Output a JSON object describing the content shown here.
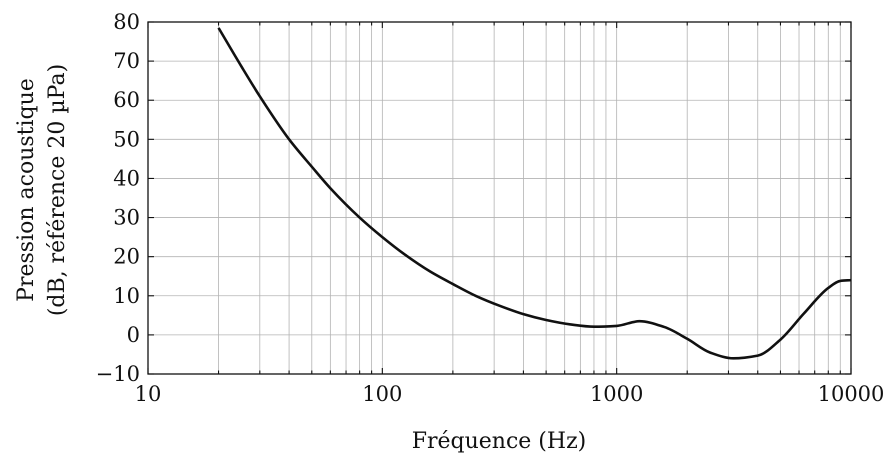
{
  "chart_data": {
    "type": "line",
    "title": "",
    "xlabel": "Fréquence (Hz)",
    "ylabel_lines": [
      "Pression acoustique",
      "(dB, référence 20 µPa)"
    ],
    "x_scale": "log",
    "xlim": [
      10,
      10000
    ],
    "ylim": [
      -10,
      80
    ],
    "x_ticks": [
      10,
      100,
      1000,
      10000
    ],
    "x_tick_labels": [
      "10",
      "100",
      "1000",
      "10000"
    ],
    "y_ticks": [
      -10,
      0,
      10,
      20,
      30,
      40,
      50,
      60,
      70,
      80
    ],
    "y_tick_labels": [
      "−10",
      "0",
      "10",
      "20",
      "30",
      "40",
      "50",
      "60",
      "70",
      "80"
    ],
    "grid": true,
    "series": [
      {
        "color": "#111111",
        "x": [
          20,
          25,
          30,
          40,
          50,
          60,
          80,
          100,
          125,
          160,
          200,
          250,
          315,
          400,
          500,
          630,
          800,
          1000,
          1250,
          1600,
          2000,
          2500,
          3150,
          4000,
          5000,
          6300,
          8000,
          9000,
          10000
        ],
        "y": [
          78.5,
          68.7,
          61.0,
          50.0,
          43.0,
          37.5,
          30.0,
          25.0,
          20.5,
          16.2,
          13.0,
          10.0,
          7.5,
          5.3,
          3.8,
          2.7,
          2.1,
          2.3,
          3.5,
          2.0,
          -1.0,
          -4.5,
          -6.0,
          -5.3,
          -1.2,
          5.5,
          12.0,
          13.8,
          14.0
        ]
      }
    ],
    "colors": {
      "grid": "#b3b3b3",
      "axis": "#111111"
    }
  }
}
